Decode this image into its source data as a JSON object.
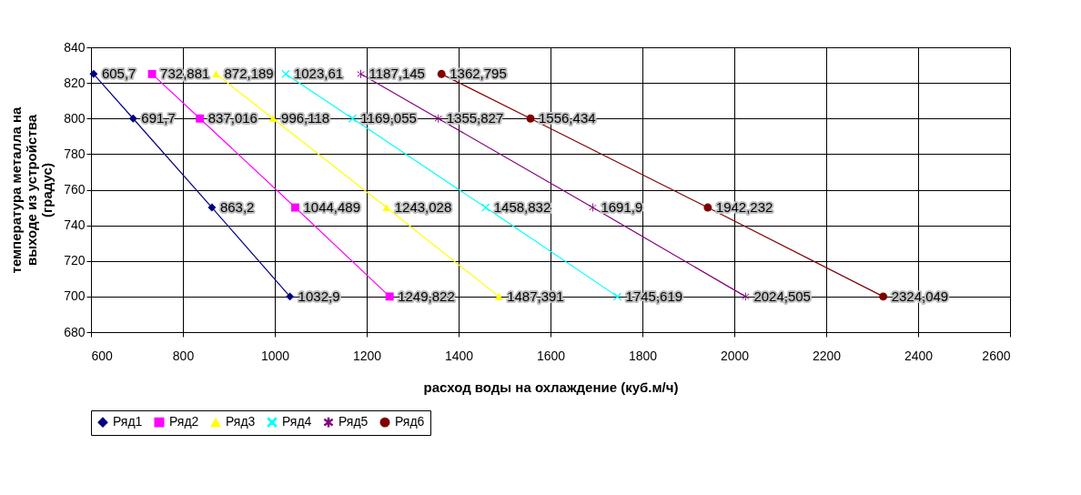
{
  "chart_data": {
    "type": "line",
    "xlabel": "расход воды на охлаждение (куб.м/ч)",
    "ylabel": "температура металла на выходе из устройства (градус)",
    "xlim": [
      600,
      2600
    ],
    "xticks": [
      600,
      800,
      1000,
      1200,
      1400,
      1600,
      1800,
      2000,
      2200,
      2400,
      2600
    ],
    "ylim": [
      680,
      840
    ],
    "yticks": [
      680,
      700,
      720,
      740,
      760,
      780,
      800,
      820,
      840
    ],
    "grid": true,
    "legend": "bottom",
    "series": [
      {
        "name": "Ряд1",
        "color": "#000080",
        "marker": "diamond",
        "x": [
          605.7,
          691.7,
          863.2,
          1032.9
        ],
        "values": [
          825,
          800,
          750,
          700
        ]
      },
      {
        "name": "Ряд2",
        "color": "#ff00ff",
        "marker": "square",
        "x": [
          732.881,
          837.016,
          1044.489,
          1249.822
        ],
        "values": [
          825,
          800,
          750,
          700
        ]
      },
      {
        "name": "Ряд3",
        "color": "#ffff00",
        "marker": "triangle",
        "x": [
          872.189,
          996.118,
          1243.028,
          1487.391
        ],
        "values": [
          825,
          800,
          750,
          700
        ]
      },
      {
        "name": "Ряд4",
        "color": "#00ffff",
        "marker": "cross",
        "x": [
          1023.61,
          1169.055,
          1458.832,
          1745.619
        ],
        "values": [
          825,
          800,
          750,
          700
        ]
      },
      {
        "name": "Ряд5",
        "color": "#800080",
        "marker": "star",
        "x": [
          1187.145,
          1355.827,
          1691.9,
          2024.505
        ],
        "values": [
          825,
          800,
          750,
          700
        ]
      },
      {
        "name": "Ряд6",
        "color": "#800000",
        "marker": "circle",
        "x": [
          1362.795,
          1556.434,
          1942.232,
          2324.049
        ],
        "values": [
          825,
          800,
          750,
          700
        ]
      }
    ],
    "annotations": [
      {
        "text": "605,7",
        "x": 605.7,
        "y": 825
      },
      {
        "text": "691,7",
        "x": 691.7,
        "y": 800
      },
      {
        "text": "863,2",
        "x": 863.2,
        "y": 750
      },
      {
        "text": "1032,9",
        "x": 1032.9,
        "y": 700
      },
      {
        "text": "732,881",
        "x": 732.881,
        "y": 825
      },
      {
        "text": "837,016",
        "x": 837.016,
        "y": 800
      },
      {
        "text": "1044,489",
        "x": 1044.489,
        "y": 750
      },
      {
        "text": "1249,822",
        "x": 1249.822,
        "y": 700
      },
      {
        "text": "872,189",
        "x": 872.189,
        "y": 825
      },
      {
        "text": "996,118",
        "x": 996.118,
        "y": 800
      },
      {
        "text": "1243,028",
        "x": 1243.028,
        "y": 750
      },
      {
        "text": "1487,391",
        "x": 1487.391,
        "y": 700
      },
      {
        "text": "1023,61",
        "x": 1023.61,
        "y": 825
      },
      {
        "text": "1169,055",
        "x": 1169.055,
        "y": 800
      },
      {
        "text": "1458,832",
        "x": 1458.832,
        "y": 750
      },
      {
        "text": "1745,619",
        "x": 1745.619,
        "y": 700
      },
      {
        "text": "1187,145",
        "x": 1187.145,
        "y": 825
      },
      {
        "text": "1355,827",
        "x": 1355.827,
        "y": 800
      },
      {
        "text": "1691,9",
        "x": 1691.9,
        "y": 750
      },
      {
        "text": "2024,505",
        "x": 2024.505,
        "y": 700
      },
      {
        "text": "1362,795",
        "x": 1362.795,
        "y": 825
      },
      {
        "text": "1556,434",
        "x": 1556.434,
        "y": 800
      },
      {
        "text": "1942,232",
        "x": 1942.232,
        "y": 750
      },
      {
        "text": "2324,049",
        "x": 2324.049,
        "y": 700
      }
    ]
  }
}
